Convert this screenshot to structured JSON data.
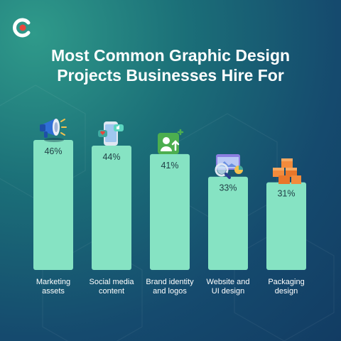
{
  "title_line1": "Most Common Graphic Design",
  "title_line2": "Projects Businesses Hire For",
  "colors": {
    "bar": "#86e3c3",
    "logo_red": "#e8453c"
  },
  "chart_data": {
    "type": "bar",
    "title": "Most Common Graphic Design Projects Businesses Hire For",
    "categories": [
      [
        "Marketing",
        "assets"
      ],
      [
        "Social media",
        "content"
      ],
      [
        "Brand identity",
        "and logos"
      ],
      [
        "Website and",
        "UI design"
      ],
      [
        "Packaging",
        "design"
      ]
    ],
    "values": [
      46,
      44,
      41,
      33,
      31
    ],
    "value_labels": [
      "46%",
      "44%",
      "41%",
      "33%",
      "31%"
    ],
    "icons": [
      "megaphone-icon",
      "phone-social-icon",
      "brand-profile-icon",
      "website-search-icon",
      "boxes-icon"
    ],
    "ylim": [
      0,
      46
    ]
  }
}
